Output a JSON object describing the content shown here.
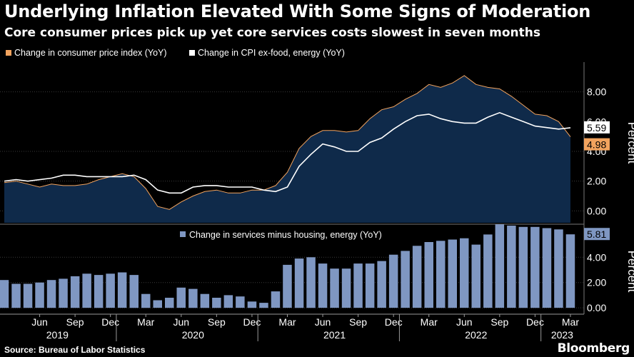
{
  "title": "Underlying Inflation Elevated With Some Signs of Moderation",
  "subtitle": "Core consumer prices pick up yet core services costs slowest in seven months",
  "source": "Source: Bureau of Labor Statistics",
  "brand": "Bloomberg",
  "colors": {
    "cpi": "#f2a35e",
    "core": "#ffffff",
    "bars": "#7f97c2",
    "area": "#0f2a4a",
    "bg": "#000000"
  },
  "chart_data": [
    {
      "type": "line",
      "panel": "top",
      "legend_position": "top-left",
      "ylabel": "Percent",
      "ylim": [
        -0.8,
        10
      ],
      "yticks": [
        0,
        2,
        4,
        8
      ],
      "ytick_labels": [
        "0.00",
        "2.00",
        "4.00",
        "8.00"
      ],
      "x": [
        "2019-03",
        "2019-04",
        "2019-05",
        "2019-06",
        "2019-07",
        "2019-08",
        "2019-09",
        "2019-10",
        "2019-11",
        "2019-12",
        "2020-01",
        "2020-02",
        "2020-03",
        "2020-04",
        "2020-05",
        "2020-06",
        "2020-07",
        "2020-08",
        "2020-09",
        "2020-10",
        "2020-11",
        "2020-12",
        "2021-01",
        "2021-02",
        "2021-03",
        "2021-04",
        "2021-05",
        "2021-06",
        "2021-07",
        "2021-08",
        "2021-09",
        "2021-10",
        "2021-11",
        "2021-12",
        "2022-01",
        "2022-02",
        "2022-03",
        "2022-04",
        "2022-05",
        "2022-06",
        "2022-07",
        "2022-08",
        "2022-09",
        "2022-10",
        "2022-11",
        "2022-12",
        "2023-01",
        "2023-02",
        "2023-03"
      ],
      "series": [
        {
          "name": "Change in consumer price index (YoY)",
          "values": [
            1.9,
            2.0,
            1.8,
            1.6,
            1.8,
            1.7,
            1.7,
            1.8,
            2.1,
            2.3,
            2.5,
            2.3,
            1.5,
            0.3,
            0.1,
            0.6,
            1.0,
            1.3,
            1.4,
            1.2,
            1.2,
            1.4,
            1.4,
            1.7,
            2.6,
            4.2,
            5.0,
            5.4,
            5.4,
            5.3,
            5.4,
            6.2,
            6.8,
            7.0,
            7.5,
            7.9,
            8.5,
            8.3,
            8.6,
            9.1,
            8.5,
            8.3,
            8.2,
            7.7,
            7.1,
            6.5,
            6.4,
            6.0,
            4.98
          ]
        },
        {
          "name": "Change in CPI ex-food, energy (YoY)",
          "values": [
            2.0,
            2.1,
            2.0,
            2.1,
            2.2,
            2.4,
            2.4,
            2.3,
            2.3,
            2.3,
            2.3,
            2.4,
            2.1,
            1.4,
            1.2,
            1.2,
            1.6,
            1.7,
            1.7,
            1.6,
            1.6,
            1.6,
            1.4,
            1.3,
            1.6,
            3.0,
            3.8,
            4.5,
            4.3,
            4.0,
            4.0,
            4.6,
            4.9,
            5.5,
            6.0,
            6.4,
            6.5,
            6.2,
            6.0,
            5.9,
            5.9,
            6.3,
            6.6,
            6.3,
            6.0,
            5.7,
            5.6,
            5.5,
            5.59
          ]
        }
      ],
      "end_labels": [
        "5.59",
        "4.98"
      ]
    },
    {
      "type": "bar",
      "panel": "bottom",
      "ylabel": "Percent",
      "ylim": [
        -0.5,
        6.5
      ],
      "yticks": [
        0,
        2,
        4
      ],
      "ytick_labels": [
        "0.00",
        "2.00",
        "4.00"
      ],
      "legend": "Change in services minus housing, energy (YoY)",
      "series": [
        {
          "name": "Change in services minus housing, energy (YoY)",
          "values": [
            2.2,
            1.9,
            1.9,
            2.0,
            2.2,
            2.3,
            2.5,
            2.7,
            2.6,
            2.7,
            2.8,
            2.6,
            1.1,
            0.6,
            0.8,
            1.6,
            1.5,
            1.1,
            0.8,
            1.0,
            0.9,
            0.5,
            0.4,
            1.3,
            3.4,
            3.9,
            4.0,
            3.5,
            3.1,
            3.1,
            3.5,
            3.5,
            3.7,
            4.2,
            4.5,
            4.9,
            5.2,
            5.3,
            5.4,
            5.5,
            5.0,
            5.8,
            6.6,
            6.5,
            6.4,
            6.4,
            6.3,
            6.2,
            5.81
          ]
        }
      ],
      "end_label": "5.81"
    }
  ],
  "x_axis": {
    "month_labels": [
      "Jun",
      "Sep",
      "Dec",
      "Mar",
      "Jun",
      "Sep",
      "Dec",
      "Mar",
      "Jun",
      "Sep",
      "Dec",
      "Mar",
      "Jun",
      "Sep",
      "Dec",
      "Mar"
    ],
    "year_labels": [
      "2019",
      "2020",
      "2021",
      "2022",
      "2023"
    ]
  }
}
